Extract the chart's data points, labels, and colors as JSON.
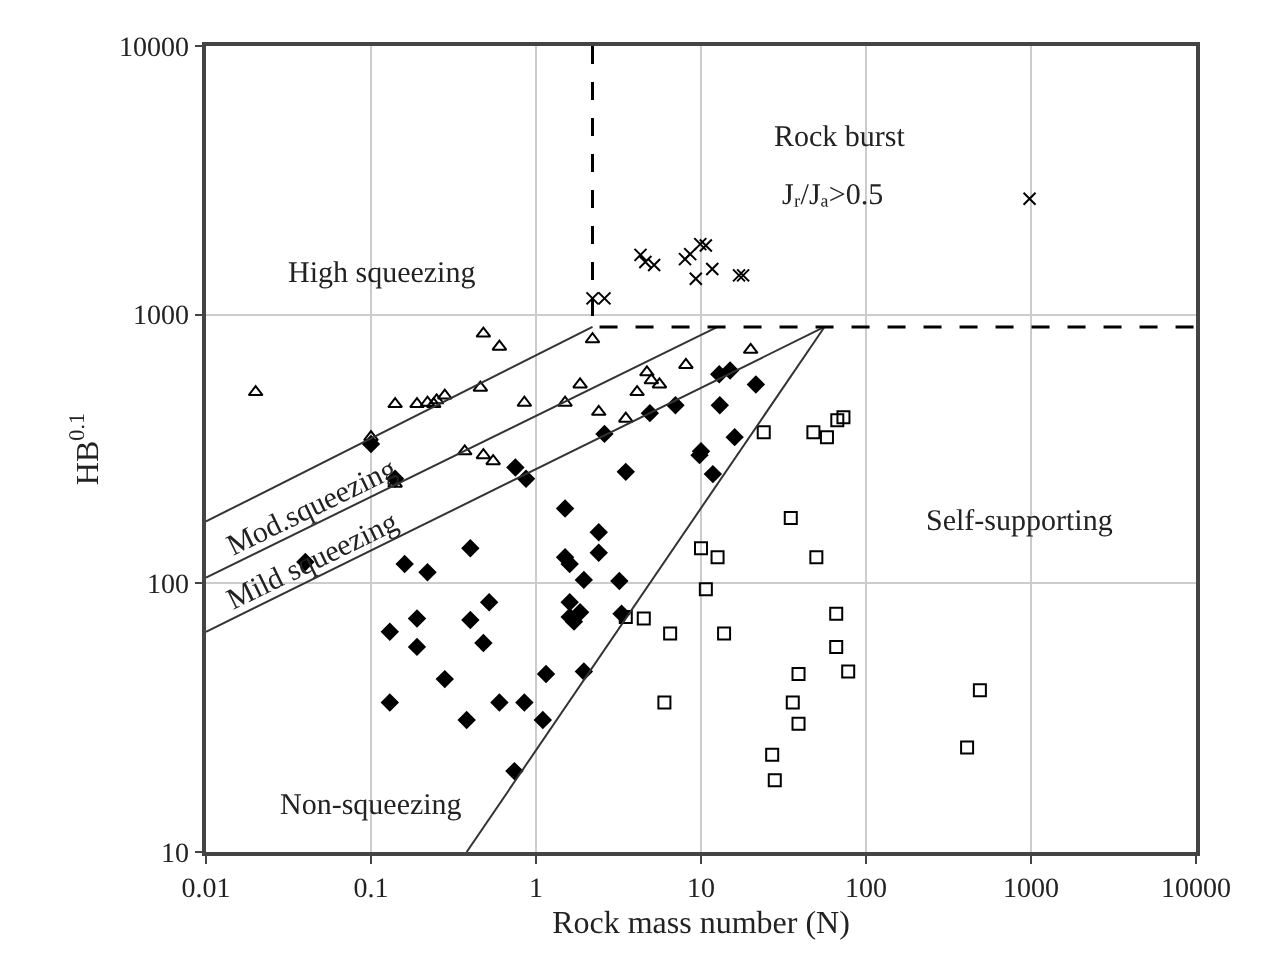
{
  "chart_data": {
    "type": "scatter",
    "xlabel": "Rock mass number (N)",
    "ylabel": "HB$^{0.1}$",
    "log": "xy",
    "grid": true,
    "xlim": [
      0.01,
      10000
    ],
    "xticks": [
      0.01,
      0.1,
      1,
      10,
      100,
      1000,
      10000
    ],
    "ylim": [
      10,
      10000
    ],
    "yticks": [
      10,
      100,
      1000,
      10000
    ],
    "annotations": [
      "High squeezing",
      "Rock burst",
      "Jᵣ/Jₐ>0.5",
      "Mod.squeezing",
      "Mild squeezing",
      "Self-supporting",
      "Non-squeezing"
    ],
    "series": [
      {
        "marker": "triangle",
        "color": "#000000",
        "x": [
          0.02,
          0.48,
          0.6,
          0.14,
          0.19,
          0.22,
          0.25,
          0.28,
          0.24,
          0.46,
          0.85,
          1.5,
          1.85,
          2.2,
          2.4,
          3.5,
          4.1,
          4.7,
          5.6,
          8.1,
          20,
          5,
          0.48,
          0.55,
          0.37,
          0.1,
          0.14
        ],
        "values": [
          515,
          850,
          760,
          465,
          465,
          470,
          480,
          500,
          465,
          535,
          470,
          470,
          550,
          810,
          435,
          410,
          515,
          610,
          550,
          650,
          740,
          570,
          300,
          285,
          310,
          350,
          235
        ]
      },
      {
        "marker": "diamond",
        "color": "#000000",
        "x": [
          0.1,
          0.14,
          0.04,
          0.16,
          0.22,
          0.4,
          0.52,
          0.4,
          0.19,
          0.13,
          0.19,
          0.48,
          0.28,
          0.13,
          0.38,
          0.6,
          0.85,
          1.15,
          1.1,
          1.95,
          0.74,
          1.5,
          1.5,
          1.6,
          1.95,
          2.4,
          2.4,
          1.6,
          1.6,
          1.85,
          1.7,
          3.2,
          3.3,
          3.5,
          2.6,
          0.87,
          0.75,
          4.9,
          7,
          10,
          11.8,
          16,
          13,
          12.9,
          15,
          21.5,
          9.8
        ],
        "values": [
          330,
          245,
          120,
          118,
          110,
          135,
          85,
          73,
          74,
          66,
          58,
          60,
          44,
          36,
          31,
          36,
          36,
          46,
          31,
          47,
          20,
          190,
          125,
          118,
          103,
          155,
          130,
          85,
          75,
          78,
          72,
          102,
          77,
          260,
          360,
          245,
          270,
          430,
          460,
          310,
          255,
          350,
          460,
          600,
          620,
          550,
          300
        ]
      },
      {
        "marker": "square",
        "color": "#000000",
        "x": [
          24,
          48,
          58,
          67,
          73,
          35,
          50,
          10,
          12.6,
          10.7,
          6.5,
          13.8,
          6,
          66,
          66,
          78,
          39,
          36,
          39,
          27,
          28,
          490,
          410,
          3.5,
          4.5
        ],
        "values": [
          365,
          365,
          350,
          405,
          415,
          175,
          125,
          135,
          125,
          95,
          65,
          65,
          36,
          77,
          58,
          47,
          46,
          36,
          30,
          23,
          18.5,
          40,
          24.5,
          75,
          74
        ]
      },
      {
        "marker": "cross",
        "color": "#000000",
        "x": [
          2.6,
          4.3,
          4.6,
          5.2,
          8,
          8.6,
          9.9,
          10.7,
          11.7,
          9.3,
          17,
          18,
          980,
          2.2
        ],
        "values": [
          1150,
          1670,
          1570,
          1530,
          1610,
          1680,
          1830,
          1810,
          1480,
          1360,
          1400,
          1400,
          2700,
          1150
        ]
      },
      {
        "type": "line",
        "marker": "none",
        "color": "#333333",
        "line_style": "solid",
        "x": [
          0.01,
          2.2
        ],
        "values": [
          170,
          900
        ]
      },
      {
        "type": "line",
        "marker": "none",
        "color": "#333333",
        "line_style": "solid",
        "x": [
          0.01,
          12.6
        ],
        "values": [
          105,
          900
        ]
      },
      {
        "type": "line",
        "marker": "none",
        "color": "#333333",
        "line_style": "solid",
        "x": [
          0.01,
          56
        ],
        "values": [
          66,
          900
        ]
      },
      {
        "type": "line",
        "marker": "none",
        "color": "#333333",
        "line_style": "solid",
        "x": [
          0.38,
          56
        ],
        "values": [
          10,
          900
        ]
      },
      {
        "type": "line",
        "marker": "none",
        "color": "#000000",
        "line_style": "dashed",
        "x": [
          2.2,
          2.2,
          10000
        ],
        "values": [
          10000,
          900,
          900
        ]
      }
    ]
  }
}
